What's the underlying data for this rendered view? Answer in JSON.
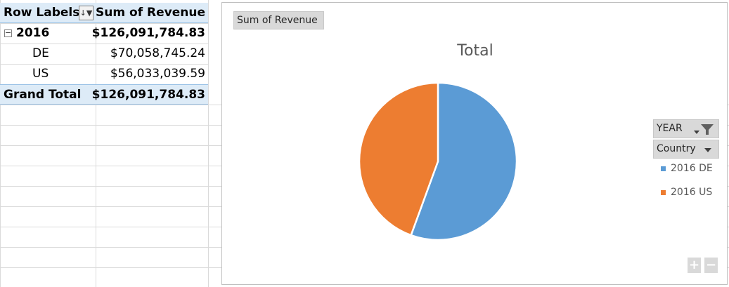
{
  "pivot": {
    "header_row_labels": "Row Labels",
    "header_sum": "Sum of Revenue",
    "sort_filter_icon": "sort-filter-icon",
    "rows": {
      "year": {
        "collapse": "−",
        "label": "2016",
        "value": "$126,091,784.83"
      },
      "de": {
        "label": "DE",
        "value": "$70,058,745.24"
      },
      "us": {
        "label": "US",
        "value": "$56,033,039.59"
      },
      "total": {
        "label": "Grand Total",
        "value": "$126,091,784.83"
      }
    }
  },
  "chart_field_buttons": {
    "value_field": "Sum of Revenue",
    "year_field": "YEAR",
    "country_field": "Country"
  },
  "zoom": {
    "plus": "+",
    "minus": "−"
  },
  "chart_data": {
    "type": "pie",
    "title": "Total",
    "categories": [
      "2016 DE",
      "2016 US"
    ],
    "values": [
      70058745.24,
      56033039.59
    ],
    "colors": [
      "#5b9bd5",
      "#ed7d31"
    ],
    "legend_position": "right"
  }
}
